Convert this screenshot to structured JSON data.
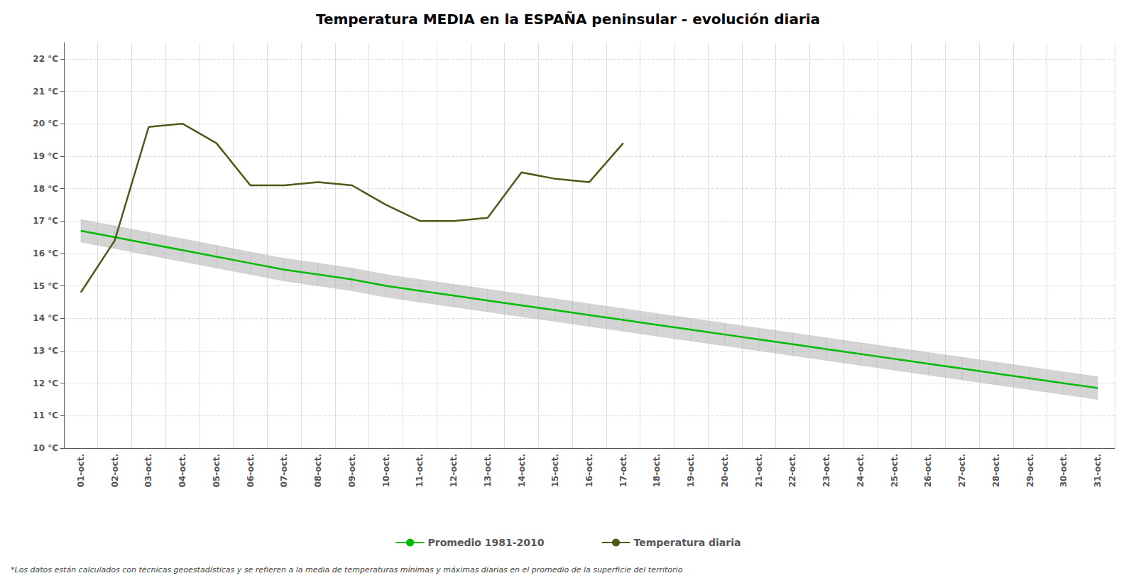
{
  "chart_data": {
    "type": "line",
    "title": "Temperatura MEDIA en la ESPAÑA peninsular - evolución diaria",
    "footnote": "*Los datos están calculados con técnicas geoestadísticas y se refieren a la media de temperaturas mínimas y máximas diarias en el promedio de la superficie del territorio",
    "categories": [
      "01-oct.",
      "02-oct.",
      "03-oct.",
      "04-oct.",
      "05-oct.",
      "06-oct.",
      "07-oct.",
      "08-oct.",
      "09-oct.",
      "10-oct.",
      "11-oct.",
      "12-oct.",
      "13-oct.",
      "14-oct.",
      "15-oct.",
      "16-oct.",
      "17-oct.",
      "18-oct.",
      "19-oct.",
      "20-oct.",
      "21-oct.",
      "22-oct.",
      "23-oct.",
      "24-oct.",
      "25-oct.",
      "26-oct.",
      "27-oct.",
      "28-oct.",
      "29-oct.",
      "30-oct.",
      "31-oct."
    ],
    "series": [
      {
        "name": "Promedio 1981-2010",
        "color": "#00bb00",
        "values": [
          16.7,
          16.5,
          16.3,
          16.1,
          15.9,
          15.7,
          15.5,
          15.35,
          15.2,
          15.0,
          14.85,
          14.7,
          14.55,
          14.4,
          14.25,
          14.1,
          13.95,
          13.8,
          13.65,
          13.5,
          13.35,
          13.2,
          13.05,
          12.9,
          12.75,
          12.6,
          12.45,
          12.3,
          12.15,
          12.0,
          11.85
        ],
        "band_lower": [
          16.35,
          16.15,
          15.95,
          15.75,
          15.55,
          15.35,
          15.15,
          15.0,
          14.85,
          14.65,
          14.5,
          14.35,
          14.2,
          14.05,
          13.9,
          13.75,
          13.6,
          13.45,
          13.3,
          13.15,
          13.0,
          12.85,
          12.7,
          12.55,
          12.4,
          12.25,
          12.1,
          11.95,
          11.8,
          11.65,
          11.5
        ],
        "band_upper": [
          17.05,
          16.85,
          16.65,
          16.45,
          16.25,
          16.05,
          15.85,
          15.7,
          15.55,
          15.35,
          15.2,
          15.05,
          14.9,
          14.75,
          14.6,
          14.45,
          14.3,
          14.15,
          14.0,
          13.85,
          13.7,
          13.55,
          13.4,
          13.25,
          13.1,
          12.95,
          12.8,
          12.65,
          12.5,
          12.35,
          12.2
        ],
        "band_color": "#b0b0b0"
      },
      {
        "name": "Temperatura diaria",
        "color": "#4a5c18",
        "values": [
          14.8,
          16.4,
          19.9,
          20.0,
          19.4,
          18.1,
          18.1,
          18.2,
          18.1,
          17.5,
          17.0,
          17.0,
          17.1,
          18.5,
          18.3,
          18.2,
          19.4,
          null,
          null,
          null,
          null,
          null,
          null,
          null,
          null,
          null,
          null,
          null,
          null,
          null,
          null
        ]
      }
    ],
    "ylim": [
      10,
      22.5
    ],
    "yticks": [
      {
        "value": 10,
        "label": "10 °C"
      },
      {
        "value": 11,
        "label": "11 °C"
      },
      {
        "value": 12,
        "label": "12 °C"
      },
      {
        "value": 13,
        "label": "13 °C"
      },
      {
        "value": 14,
        "label": "14 °C"
      },
      {
        "value": 15,
        "label": "15 °C"
      },
      {
        "value": 16,
        "label": "16 °C"
      },
      {
        "value": 17,
        "label": "17 °C"
      },
      {
        "value": 18,
        "label": "18 °C"
      },
      {
        "value": 19,
        "label": "19 °C"
      },
      {
        "value": 20,
        "label": "20 °C"
      },
      {
        "value": 21,
        "label": "21 °C"
      },
      {
        "value": 22,
        "label": "22 °C"
      }
    ],
    "grid": true,
    "legend": "bottom"
  }
}
